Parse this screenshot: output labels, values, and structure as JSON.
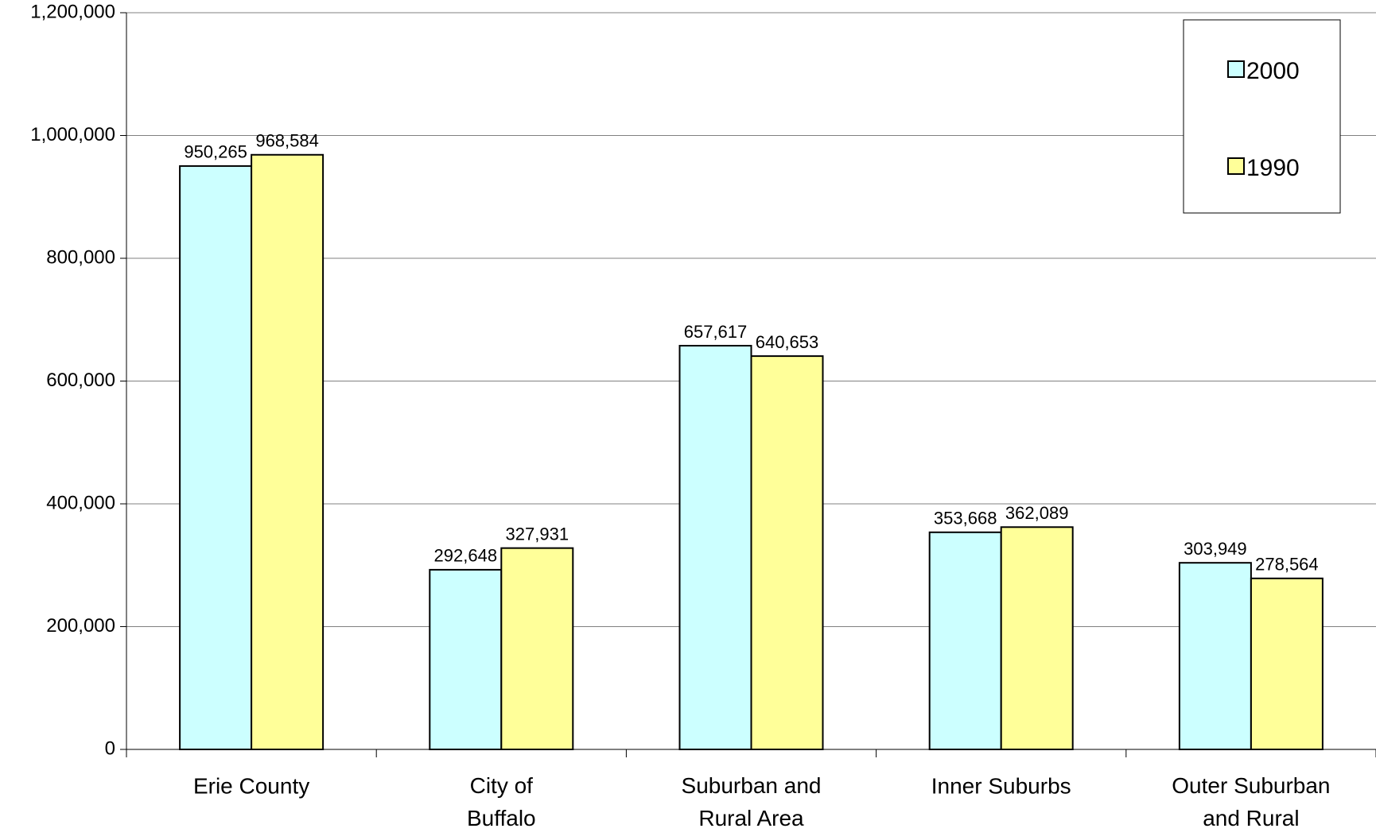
{
  "chart_data": {
    "type": "bar",
    "categories": [
      "Erie County",
      "City of Buffalo",
      "Suburban and Rural Area",
      "Inner Suburbs",
      "Outer Suburban and Rural"
    ],
    "series": [
      {
        "name": "2000",
        "color": "#ccffff",
        "values": [
          950265,
          292648,
          657617,
          353668,
          303949
        ],
        "value_labels": [
          "950,265",
          "292,648",
          "657,617",
          "353,668",
          "303,949"
        ]
      },
      {
        "name": "1990",
        "color": "#ffff99",
        "values": [
          968584,
          327931,
          640653,
          362089,
          278564
        ],
        "value_labels": [
          "968,584",
          "327,931",
          "640,653",
          "362,089",
          "278,564"
        ]
      }
    ],
    "ylim": [
      0,
      1200000
    ],
    "yticks": [
      0,
      {
        "value": 200000,
        "label": "200,000"
      },
      {
        "value": 400000,
        "label": "400,000"
      },
      {
        "value": 600000,
        "label": "600,000"
      },
      {
        "value": 800000,
        "label": "800,000"
      },
      {
        "value": 1000000,
        "label": "1,000,000"
      },
      {
        "value": 1200000,
        "label": "1,200,000"
      }
    ],
    "grid": true,
    "legend": "upper right"
  }
}
